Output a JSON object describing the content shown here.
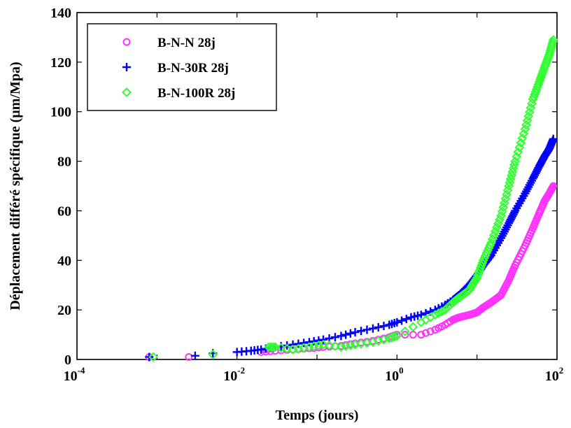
{
  "chart_data": {
    "type": "scatter",
    "xlabel": "Temps (jours)",
    "ylabel": "Déplacement différé spécifique (µm/Mpa)",
    "xscale": "log",
    "xlim": [
      0.0001,
      100
    ],
    "ylim": [
      0,
      140
    ],
    "x_ticks": [
      {
        "base": "10",
        "exp": "-4"
      },
      {
        "base": "10",
        "exp": "-2"
      },
      {
        "base": "10",
        "exp": "0"
      },
      {
        "base": "10",
        "exp": "2"
      }
    ],
    "y_ticks": [
      "0",
      "20",
      "40",
      "60",
      "80",
      "100",
      "120",
      "140"
    ],
    "grid": false,
    "legend_position": "top-left",
    "series": [
      {
        "name": "B-N-N 28j",
        "color": "#ff33ff",
        "marker": "circle",
        "x": [
          0.0008,
          0.0025,
          0.02,
          0.03,
          0.05,
          0.08,
          0.12,
          0.2,
          0.3,
          0.5,
          0.8,
          1.0,
          2.0,
          3.0,
          4.0,
          5.0,
          6.0,
          8.0,
          10.0,
          12.0,
          15.0,
          20.0,
          25.0,
          30.0,
          40.0,
          50.0,
          60.0,
          70.0,
          80.0,
          90.0
        ],
        "y": [
          1,
          1,
          3,
          3.5,
          4,
          4.5,
          5,
          5.5,
          6.5,
          7.5,
          9,
          10,
          10,
          12,
          14,
          16,
          17,
          18,
          19,
          21,
          23,
          26,
          32,
          38,
          46,
          53,
          59,
          64,
          67,
          70
        ]
      },
      {
        "name": "B-N-30R 28j",
        "color": "#0000ff",
        "marker": "plus",
        "x": [
          0.0008,
          0.003,
          0.005,
          0.01,
          0.015,
          0.02,
          0.03,
          0.05,
          0.08,
          0.12,
          0.2,
          0.3,
          0.5,
          0.8,
          1.0,
          1.5,
          2.0,
          3.0,
          4.0,
          5.0,
          6.0,
          8.0,
          10.0,
          12.0,
          15.0,
          20.0,
          25.0,
          30.0,
          40.0,
          50.0,
          60.0,
          70.0,
          80.0,
          90.0
        ],
        "y": [
          1,
          1.5,
          2.5,
          3,
          3.5,
          4,
          5,
          6,
          7,
          8,
          9.5,
          11,
          12.5,
          14,
          15,
          17,
          18,
          20,
          22,
          24,
          26,
          30,
          34,
          38,
          42,
          49,
          55,
          60,
          67,
          73,
          78,
          82,
          85,
          89
        ]
      },
      {
        "name": "B-N-100R 28j",
        "color": "#33ff33",
        "marker": "diamond",
        "x": [
          0.0009,
          0.005,
          0.025,
          0.03,
          0.05,
          0.08,
          0.12,
          0.2,
          0.3,
          0.5,
          0.8,
          1.0,
          2.0,
          3.0,
          4.0,
          5.0,
          6.0,
          8.0,
          10.0,
          12.0,
          15.0,
          20.0,
          25.0,
          30.0,
          40.0,
          50.0,
          60.0,
          70.0,
          80.0,
          90.0
        ],
        "y": [
          1,
          2,
          5,
          5,
          4,
          5,
          6,
          5,
          6,
          7,
          8.5,
          9.5,
          15,
          18,
          20,
          23,
          25,
          28,
          33,
          40,
          47,
          58,
          70,
          80,
          93,
          105,
          112,
          118,
          123,
          129
        ]
      }
    ]
  }
}
